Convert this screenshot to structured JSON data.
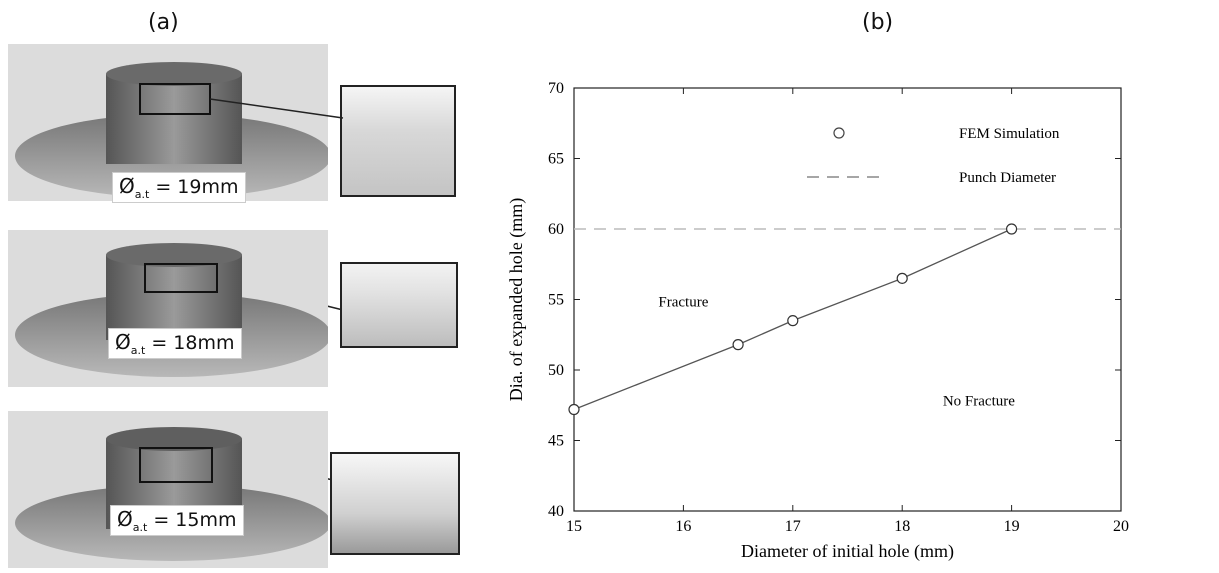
{
  "panel_labels": {
    "a": "(a)",
    "b": "(b)"
  },
  "photos": [
    {
      "prefix": "Ø",
      "sub": "a.t",
      "value": " = 19mm"
    },
    {
      "prefix": "Ø",
      "sub": "a.t",
      "value": " = 18mm"
    },
    {
      "prefix": "Ø",
      "sub": "a.t",
      "value": " = 15mm"
    }
  ],
  "chart_data": {
    "type": "line",
    "xlabel": "Diameter of initial hole (mm)",
    "ylabel": "Dia. of expanded hole (mm)",
    "xlim": [
      15,
      20
    ],
    "ylim": [
      40,
      70
    ],
    "xticks": [
      15,
      16,
      17,
      18,
      19,
      20
    ],
    "yticks": [
      40,
      45,
      50,
      55,
      60,
      65,
      70
    ],
    "series": [
      {
        "name": "FEM Simulation",
        "x": [
          15,
          16.5,
          17,
          18,
          19
        ],
        "y": [
          47.2,
          51.8,
          53.5,
          56.5,
          60.0
        ]
      }
    ],
    "reference_line": {
      "name": "Punch Diameter",
      "y": 60
    },
    "annotations": [
      {
        "text": "Fracture",
        "x": 16.0,
        "y": 54.5
      },
      {
        "text": "No Fracture",
        "x": 18.6,
        "y": 47.5
      }
    ],
    "grid": false,
    "legend": "top-center"
  }
}
